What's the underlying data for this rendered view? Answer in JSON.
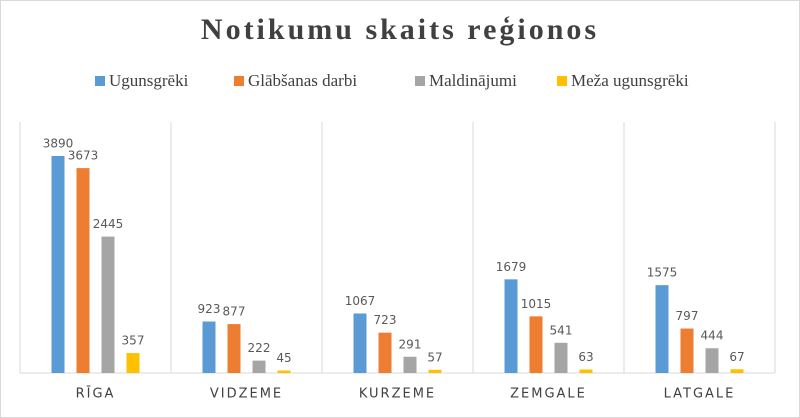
{
  "chart_data": {
    "type": "bar",
    "title": "Notikumu skaits reģionos",
    "categories": [
      "RĪGA",
      "VIDZEME",
      "KURZEME",
      "ZEMGALE",
      "LATGALE"
    ],
    "series": [
      {
        "name": "Ugunsgrēki",
        "color": "#5b9bd5",
        "values": [
          3890,
          923,
          1067,
          1679,
          1575
        ]
      },
      {
        "name": "Glābšanas darbi",
        "color": "#ed7d31",
        "values": [
          3673,
          877,
          723,
          1015,
          797
        ]
      },
      {
        "name": "Maldinājumi",
        "color": "#a5a5a5",
        "values": [
          2445,
          222,
          291,
          541,
          444
        ]
      },
      {
        "name": "Meža ugunsgrēki",
        "color": "#ffc000",
        "values": [
          357,
          45,
          57,
          63,
          67
        ]
      }
    ],
    "legend": "top"
  }
}
